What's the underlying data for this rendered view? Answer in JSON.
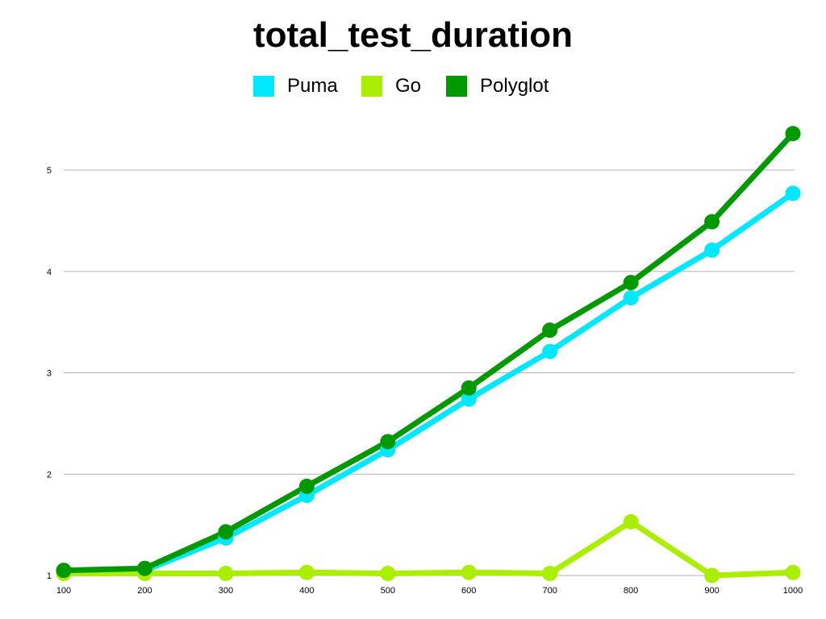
{
  "chart_data": {
    "type": "line",
    "title": "total_test_duration",
    "xlabel": "",
    "ylabel": "",
    "x": [
      100,
      200,
      300,
      400,
      500,
      600,
      700,
      800,
      900,
      1000
    ],
    "x_tick_labels": [
      "100",
      "200",
      "300",
      "400",
      "500",
      "600",
      "700",
      "800",
      "900",
      "1000"
    ],
    "y_tick_labels": [
      "1",
      "2",
      "3",
      "4",
      "5"
    ],
    "y_ticks": [
      1,
      2,
      3,
      4,
      5
    ],
    "ylim": [
      1,
      5.6
    ],
    "grid": true,
    "legend_position": "top",
    "series": [
      {
        "name": "Puma",
        "color": "#00E8FF",
        "values": [
          1.03,
          1.05,
          1.37,
          1.79,
          2.24,
          2.74,
          3.21,
          3.74,
          4.21,
          4.77
        ]
      },
      {
        "name": "Go",
        "color": "#AAEE00",
        "values": [
          1.02,
          1.02,
          1.02,
          1.03,
          1.02,
          1.03,
          1.02,
          1.53,
          1.0,
          1.03
        ]
      },
      {
        "name": "Polyglot",
        "color": "#009900",
        "values": [
          1.05,
          1.07,
          1.43,
          1.88,
          2.32,
          2.85,
          3.42,
          3.89,
          4.49,
          5.36
        ]
      }
    ]
  }
}
